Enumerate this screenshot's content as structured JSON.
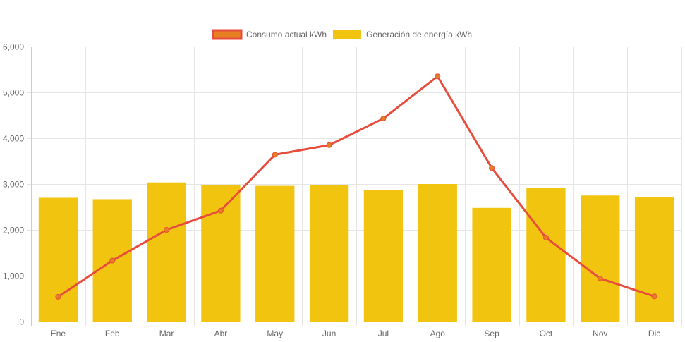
{
  "chart_data": {
    "type": "bar",
    "title": "",
    "xlabel": "",
    "ylabel": "",
    "categories": [
      "Ene",
      "Feb",
      "Mar",
      "Abr",
      "May",
      "Jun",
      "Jul",
      "Ago",
      "Sep",
      "Oct",
      "Nov",
      "Dic"
    ],
    "ylim": [
      0,
      6000
    ],
    "yticks": [
      0,
      1000,
      2000,
      3000,
      4000,
      5000,
      6000
    ],
    "ytick_labels": [
      "0",
      "1,000",
      "2,000",
      "3,000",
      "4,000",
      "5,000",
      "6,000"
    ],
    "grid": true,
    "legend_position": "top-center",
    "series": [
      {
        "name": "Consumo actual kWh",
        "type": "line",
        "color": "#e74c3c",
        "point_color": "#e67e22",
        "values": [
          540,
          1330,
          2000,
          2420,
          3640,
          3850,
          4430,
          5350,
          3350,
          1830,
          940,
          550
        ]
      },
      {
        "name": "Generación de energía kWh",
        "type": "bar",
        "color": "#f1c40f",
        "values": [
          2700,
          2670,
          3035,
          2985,
          2960,
          2970,
          2870,
          3000,
          2480,
          2920,
          2750,
          2720
        ]
      }
    ]
  }
}
